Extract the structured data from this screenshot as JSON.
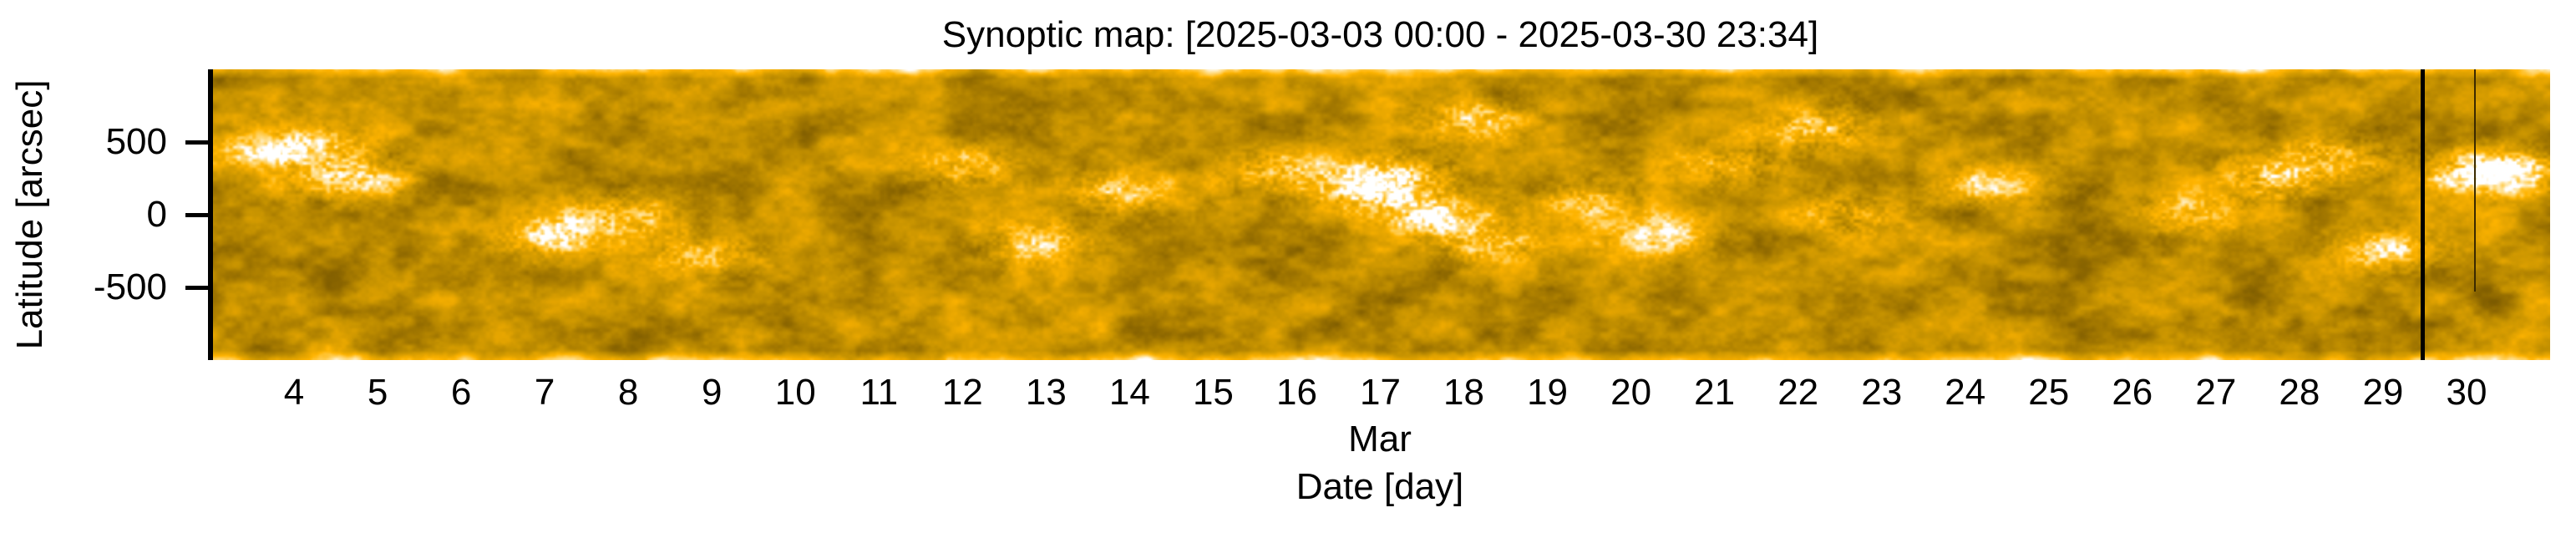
{
  "chart_data": {
    "type": "heatmap",
    "title": "Synoptic map: [2025-03-03 00:00 - 2025-03-30 23:34]",
    "xlabel": "Date [day]",
    "xlabel_month": "Mar",
    "ylabel": "Latitude [arcsec]",
    "xlim_day": [
      3.0,
      31.0
    ],
    "ylim": [
      -1000,
      1000
    ],
    "x_ticks": [
      4,
      5,
      6,
      7,
      8,
      9,
      10,
      11,
      12,
      13,
      14,
      15,
      16,
      17,
      18,
      19,
      20,
      21,
      22,
      23,
      24,
      25,
      26,
      27,
      28,
      29,
      30
    ],
    "x_tick_labels": [
      "4",
      "5",
      "6",
      "7",
      "8",
      "9",
      "10",
      "11",
      "12",
      "13",
      "14",
      "15",
      "16",
      "17",
      "18",
      "19",
      "20",
      "21",
      "22",
      "23",
      "24",
      "25",
      "26",
      "27",
      "28",
      "29",
      "30"
    ],
    "y_ticks": [
      500,
      0,
      -500
    ],
    "y_tick_labels": [
      "500",
      "0",
      "-500"
    ],
    "colormap": [
      "#5e4400",
      "#8a6500",
      "#c89400",
      "#ffb400",
      "#ffe39a",
      "#ffffff"
    ],
    "bright_regions": [
      {
        "day": 3.6,
        "lat": 450,
        "strength": 0.6
      },
      {
        "day": 4.6,
        "lat": 260,
        "strength": 0.9
      },
      {
        "day": 4.3,
        "lat": 480,
        "strength": 0.6
      },
      {
        "day": 7.1,
        "lat": -145,
        "strength": 0.85
      },
      {
        "day": 8.0,
        "lat": -10,
        "strength": 0.7
      },
      {
        "day": 8.9,
        "lat": -280,
        "strength": 0.6
      },
      {
        "day": 12.0,
        "lat": 330,
        "strength": 0.6
      },
      {
        "day": 12.9,
        "lat": -200,
        "strength": 0.75
      },
      {
        "day": 13.9,
        "lat": 150,
        "strength": 0.7
      },
      {
        "day": 15.8,
        "lat": 300,
        "strength": 0.8
      },
      {
        "day": 16.8,
        "lat": 170,
        "strength": 0.95
      },
      {
        "day": 17.3,
        "lat": 280,
        "strength": 0.8
      },
      {
        "day": 17.6,
        "lat": 0,
        "strength": 0.85
      },
      {
        "day": 18.1,
        "lat": 650,
        "strength": 0.7
      },
      {
        "day": 18.3,
        "lat": -200,
        "strength": 0.7
      },
      {
        "day": 19.5,
        "lat": 100,
        "strength": 0.6
      },
      {
        "day": 20.3,
        "lat": -150,
        "strength": 0.7
      },
      {
        "day": 21.2,
        "lat": 350,
        "strength": 0.6
      },
      {
        "day": 22.2,
        "lat": 600,
        "strength": 0.8
      },
      {
        "day": 22.6,
        "lat": 0,
        "strength": 0.6
      },
      {
        "day": 24.3,
        "lat": 200,
        "strength": 0.6
      },
      {
        "day": 26.7,
        "lat": 0,
        "strength": 0.6
      },
      {
        "day": 27.7,
        "lat": 250,
        "strength": 0.8
      },
      {
        "day": 28.4,
        "lat": 400,
        "strength": 0.7
      },
      {
        "day": 29.1,
        "lat": -250,
        "strength": 0.8
      },
      {
        "day": 30.1,
        "lat": 300,
        "strength": 0.9
      },
      {
        "day": 30.7,
        "lat": 300,
        "strength": 0.8
      }
    ],
    "data_gaps": [
      {
        "day": 29.48,
        "lat_from": 1000,
        "lat_to": -1000,
        "kind": "thick"
      },
      {
        "day": 30.1,
        "lat_from": 1000,
        "lat_to": -530,
        "kind": "thin"
      }
    ]
  }
}
